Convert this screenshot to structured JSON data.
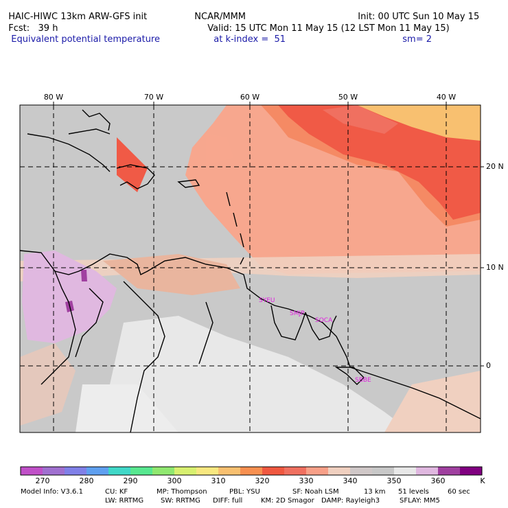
{
  "header": {
    "model": "HAIC-HIWC 13km ARW-GFS init",
    "org": "NCAR/MMM",
    "init": "Init: 00 UTC Sun 10 May 15",
    "fcst": "Fcst:   39 h",
    "valid": "Valid: 15 UTC Mon 11 May 15 (12 LST Mon 11 May 15)",
    "field": "Equivalent potential temperature",
    "level": "at k-index =  51",
    "smooth": "sm= 2"
  },
  "map": {
    "lon_labels": [
      "80 W",
      "70 W",
      "60 W",
      "50 W",
      "40 W"
    ],
    "lat_labels": [
      "20 N",
      "10 N",
      "0"
    ],
    "station_labels": [
      "SYEU",
      "SMJP",
      "SOCA",
      "SBBE"
    ]
  },
  "colorbar": {
    "unit": "K",
    "labels": [
      "270",
      "280",
      "290",
      "300",
      "310",
      "320",
      "330",
      "340",
      "350",
      "360"
    ],
    "colors": [
      "#c050c8",
      "#a070d0",
      "#8080e8",
      "#5fa0f0",
      "#40d8c8",
      "#58e890",
      "#90e870",
      "#d8f070",
      "#f8e880",
      "#f8c070",
      "#f89050",
      "#f05840",
      "#f07060",
      "#f8a088",
      "#f0d0c0",
      "#d0c8c8",
      "#c8c8c8",
      "#e8e8e8",
      "#e0b8e0",
      "#a040a0",
      "#800080"
    ]
  },
  "footer": {
    "line1": [
      "Model Info: V3.6.1",
      "CU: KF",
      "MP: Thompson",
      "PBL: YSU",
      "SF: Noah LSM",
      "13 km",
      "51 levels",
      "60 sec"
    ],
    "line2": [
      "LW: RRTMG",
      "SW: RRTMG",
      "DIFF: full",
      "KM: 2D Smagor",
      "DAMP: Rayleigh3",
      "SFLAY: MM5"
    ]
  }
}
